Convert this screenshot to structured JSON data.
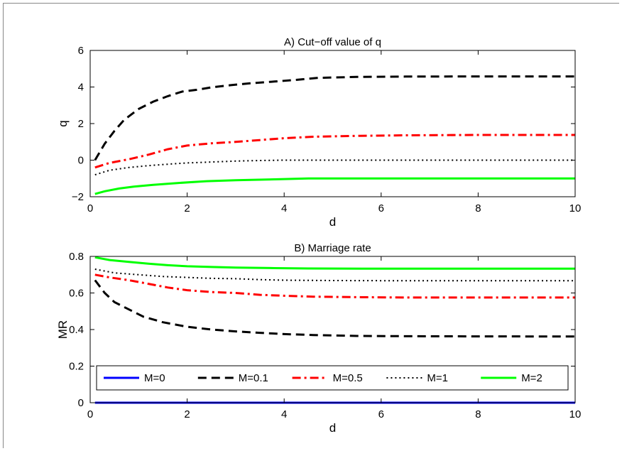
{
  "chart_data": [
    {
      "type": "line",
      "title": "A) Cut−off value of q",
      "xlabel": "d",
      "ylabel": "q",
      "xlim": [
        0,
        10
      ],
      "ylim": [
        -2,
        6
      ],
      "xticks": [
        0,
        2,
        4,
        6,
        8,
        10
      ],
      "yticks": [
        -2,
        0,
        2,
        4,
        6
      ],
      "xtick_labels": [
        "0",
        "2",
        "4",
        "6",
        "8",
        "10"
      ],
      "ytick_labels": [
        "−2",
        "0",
        "2",
        "4",
        "6"
      ],
      "grid": false,
      "series": [
        {
          "name": "M=0.1",
          "color": "#000000",
          "style": "dashed",
          "x": [
            0.1,
            0.3,
            0.5,
            0.7,
            1.0,
            1.3,
            1.6,
            1.9,
            2.2,
            2.5,
            2.9,
            3.3,
            3.8,
            4.2,
            4.7,
            5.5,
            6.5,
            8,
            10
          ],
          "y": [
            0.0,
            0.9,
            1.6,
            2.2,
            2.8,
            3.2,
            3.5,
            3.75,
            3.85,
            3.98,
            4.1,
            4.2,
            4.3,
            4.38,
            4.5,
            4.55,
            4.57,
            4.58,
            4.58
          ]
        },
        {
          "name": "M=0.5",
          "color": "#ff0000",
          "style": "dashdot",
          "x": [
            0.1,
            0.4,
            0.8,
            1.2,
            1.6,
            2.0,
            2.5,
            3.0,
            3.5,
            4.0,
            4.6,
            5.5,
            6.5,
            8,
            10
          ],
          "y": [
            -0.4,
            -0.15,
            0.05,
            0.3,
            0.6,
            0.8,
            0.92,
            1.0,
            1.1,
            1.2,
            1.28,
            1.33,
            1.36,
            1.38,
            1.38
          ]
        },
        {
          "name": "M=1",
          "color": "#000000",
          "style": "dotted",
          "x": [
            0.1,
            0.4,
            0.8,
            1.2,
            1.6,
            2.0,
            2.5,
            3.0,
            3.5,
            4.0,
            5,
            6,
            8,
            10
          ],
          "y": [
            -0.8,
            -0.55,
            -0.4,
            -0.3,
            -0.22,
            -0.15,
            -0.1,
            -0.05,
            -0.02,
            0.0,
            0.0,
            0.0,
            0.0,
            0.0
          ]
        },
        {
          "name": "M=2",
          "color": "#00ff00",
          "style": "solid",
          "x": [
            0.1,
            0.3,
            0.6,
            0.9,
            1.3,
            1.8,
            2.4,
            3.0,
            3.8,
            4.5,
            6,
            8,
            10
          ],
          "y": [
            -1.85,
            -1.7,
            -1.55,
            -1.45,
            -1.35,
            -1.25,
            -1.15,
            -1.1,
            -1.05,
            -1.0,
            -1.0,
            -1.0,
            -1.0
          ]
        }
      ]
    },
    {
      "type": "line",
      "title": "B) Marriage rate",
      "xlabel": "d",
      "ylabel": "MR",
      "xlim": [
        0,
        10
      ],
      "ylim": [
        0,
        0.8
      ],
      "xticks": [
        0,
        2,
        4,
        6,
        8,
        10
      ],
      "yticks": [
        0,
        0.2,
        0.4,
        0.6,
        0.8
      ],
      "xtick_labels": [
        "0",
        "2",
        "4",
        "6",
        "8",
        "10"
      ],
      "ytick_labels": [
        "0",
        "0.2",
        "0.4",
        "0.6",
        "0.8"
      ],
      "grid": false,
      "legend": {
        "placement": "bottom",
        "orientation": "horizontal"
      },
      "series": [
        {
          "name": "M=0",
          "color": "#0000ff",
          "style": "solid",
          "x": [
            0.1,
            10
          ],
          "y": [
            0.0,
            0.0
          ]
        },
        {
          "name": "M=0.1",
          "color": "#000000",
          "style": "dashed",
          "x": [
            0.1,
            0.3,
            0.5,
            0.8,
            1.1,
            1.5,
            2.0,
            2.5,
            3.0,
            3.5,
            4.0,
            4.6,
            5.5,
            7,
            10
          ],
          "y": [
            0.67,
            0.6,
            0.55,
            0.51,
            0.47,
            0.44,
            0.415,
            0.4,
            0.39,
            0.382,
            0.375,
            0.37,
            0.365,
            0.363,
            0.362
          ]
        },
        {
          "name": "M=0.5",
          "color": "#ff0000",
          "style": "dashdot",
          "x": [
            0.1,
            0.4,
            0.8,
            1.2,
            1.6,
            2.0,
            2.5,
            3.0,
            3.5,
            4.0,
            4.6,
            5.5,
            6.5,
            8,
            10
          ],
          "y": [
            0.7,
            0.685,
            0.67,
            0.65,
            0.63,
            0.615,
            0.605,
            0.6,
            0.59,
            0.585,
            0.58,
            0.577,
            0.575,
            0.575,
            0.575
          ]
        },
        {
          "name": "M=1",
          "color": "#000000",
          "style": "dotted",
          "x": [
            0.1,
            0.5,
            1.0,
            1.5,
            2.0,
            2.5,
            3.0,
            3.5,
            4.0,
            5,
            6,
            8,
            10
          ],
          "y": [
            0.73,
            0.71,
            0.7,
            0.69,
            0.685,
            0.68,
            0.678,
            0.673,
            0.67,
            0.668,
            0.667,
            0.667,
            0.667
          ]
        },
        {
          "name": "M=2",
          "color": "#00ff00",
          "style": "solid",
          "x": [
            0.1,
            0.4,
            0.8,
            1.2,
            1.6,
            2.0,
            2.5,
            3.0,
            3.8,
            4.5,
            6,
            8,
            10
          ],
          "y": [
            0.795,
            0.78,
            0.77,
            0.76,
            0.752,
            0.746,
            0.742,
            0.739,
            0.736,
            0.734,
            0.733,
            0.733,
            0.733
          ]
        }
      ]
    }
  ]
}
